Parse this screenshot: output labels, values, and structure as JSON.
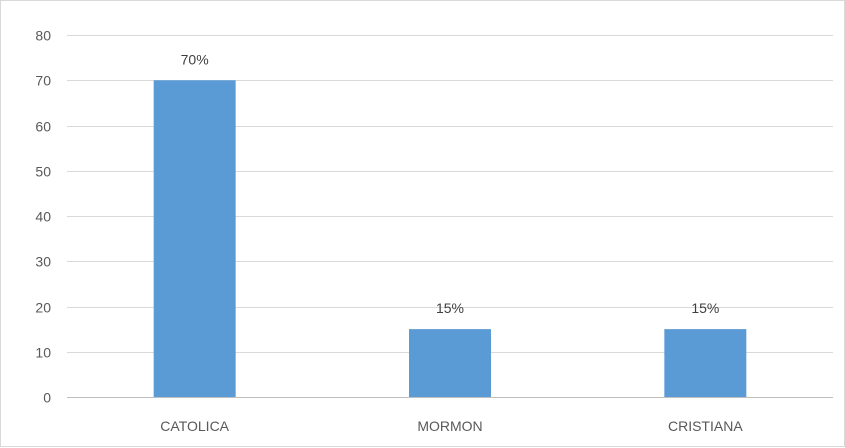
{
  "chart_data": {
    "type": "bar",
    "categories": [
      "CATOLICA",
      "MORMON",
      "CRISTIANA"
    ],
    "values": [
      70,
      15,
      15
    ],
    "data_labels": [
      "70%",
      "15%",
      "15%"
    ],
    "title": "",
    "xlabel": "",
    "ylabel": "",
    "ylim": [
      0,
      80
    ],
    "yticks": [
      "0",
      "10",
      "20",
      "30",
      "40",
      "50",
      "60",
      "70",
      "80"
    ],
    "grid": true,
    "legend": "none",
    "bar_color": "#5b9bd5"
  }
}
